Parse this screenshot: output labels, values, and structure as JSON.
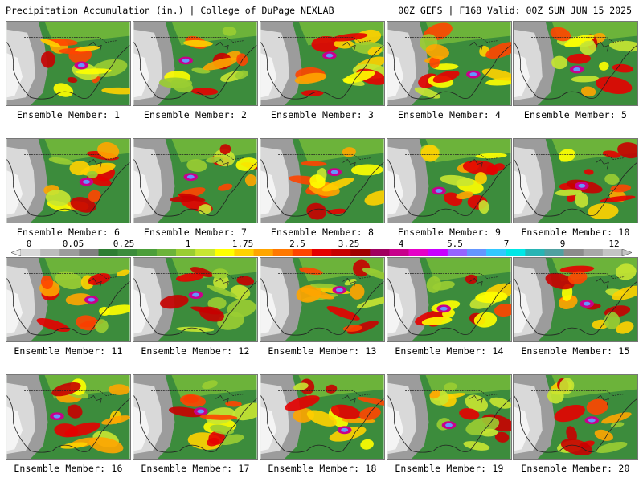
{
  "header": {
    "title": "Precipitation Accumulation (in.) | College of DuPage NEXLAB",
    "run_info": "00Z GEFS | F168 Valid: 00Z SUN JUN 15 2025"
  },
  "legend": {
    "ticks": [
      "0",
      "0.05",
      "0.25",
      "1",
      "1.75",
      "2.5",
      "3.25",
      "4",
      "5.5",
      "7",
      "9",
      "12"
    ],
    "colors": [
      "#d9d9d9",
      "#bcbcbc",
      "#9c9c9c",
      "#808080",
      "#2e7d32",
      "#3c8c3c",
      "#4c9e3a",
      "#6cb33a",
      "#9acd32",
      "#c8e632",
      "#ffff00",
      "#ffd200",
      "#ffa500",
      "#ff7800",
      "#ff4500",
      "#e60000",
      "#c80000",
      "#a00000",
      "#a00060",
      "#c8008c",
      "#e600c8",
      "#c800ff",
      "#9664ff",
      "#6496ff",
      "#32c8ff",
      "#00e6e6",
      "#28b4b4",
      "#50a0a0",
      "#8c8c8c",
      "#a8a8a8",
      "#c4c4c4"
    ]
  },
  "members": [
    {
      "label": "Ensemble Member: 1"
    },
    {
      "label": "Ensemble Member: 2"
    },
    {
      "label": "Ensemble Member: 3"
    },
    {
      "label": "Ensemble Member: 4"
    },
    {
      "label": "Ensemble Member: 5"
    },
    {
      "label": "Ensemble Member: 6"
    },
    {
      "label": "Ensemble Member: 7"
    },
    {
      "label": "Ensemble Member: 8"
    },
    {
      "label": "Ensemble Member: 9"
    },
    {
      "label": "Ensemble Member: 10"
    },
    {
      "label": "Ensemble Member: 11"
    },
    {
      "label": "Ensemble Member: 12"
    },
    {
      "label": "Ensemble Member: 13"
    },
    {
      "label": "Ensemble Member: 14"
    },
    {
      "label": "Ensemble Member: 15"
    },
    {
      "label": "Ensemble Member: 16"
    },
    {
      "label": "Ensemble Member: 17"
    },
    {
      "label": "Ensemble Member: 18"
    },
    {
      "label": "Ensemble Member: 19"
    },
    {
      "label": "Ensemble Member: 20"
    }
  ]
}
